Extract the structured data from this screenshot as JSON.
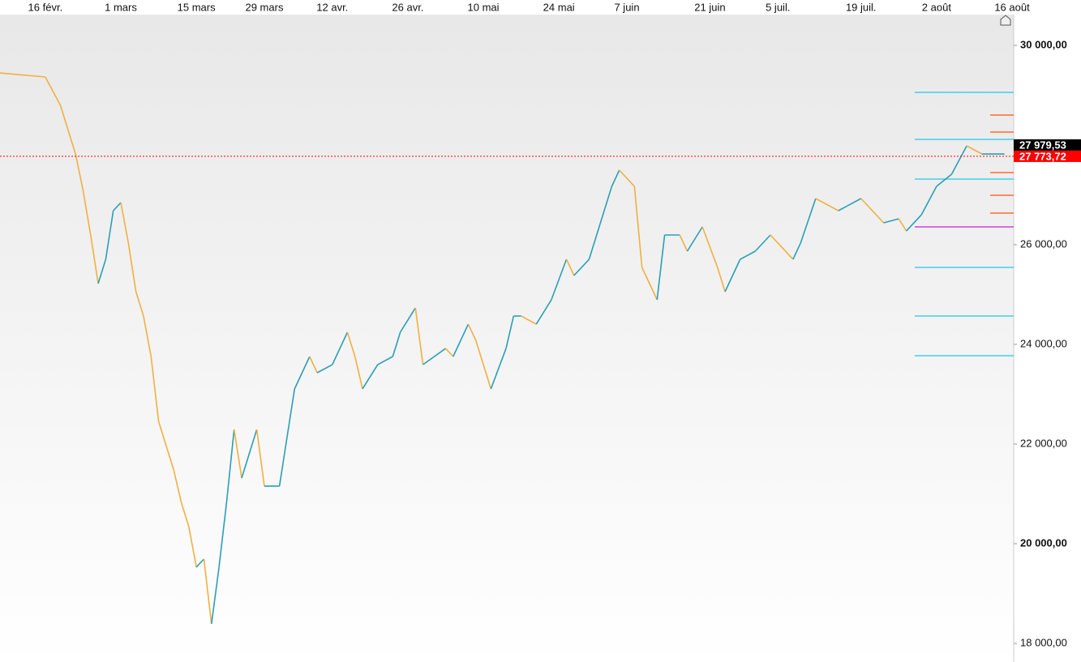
{
  "chart_data": {
    "type": "price",
    "x": [
      0,
      6,
      8,
      10,
      11,
      12,
      13,
      14,
      15,
      16,
      17,
      18,
      19,
      20,
      21,
      23,
      24,
      25,
      26,
      27,
      28,
      29,
      30,
      31,
      32,
      34,
      35,
      37,
      39,
      41,
      42,
      44,
      46,
      47,
      48,
      50,
      52,
      53,
      55,
      56,
      59,
      60,
      62,
      63,
      65,
      67,
      68,
      69,
      71,
      73,
      75,
      76,
      78,
      79,
      81,
      82,
      84,
      85,
      87,
      88,
      90,
      91,
      93,
      95,
      96,
      98,
      100,
      102,
      103,
      105,
      106,
      108,
      111,
      112,
      114,
      117,
      119,
      120,
      122,
      124,
      126,
      128,
      130,
      133
    ],
    "values": [
      29447,
      29366,
      28797,
      27821,
      27090,
      26195,
      25220,
      25707,
      26683,
      26845,
      26033,
      25057,
      24569,
      23756,
      22455,
      21480,
      20830,
      20342,
      19529,
      19691,
      18390,
      19529,
      20830,
      22293,
      21317,
      22293,
      21155,
      21155,
      23106,
      23756,
      23431,
      23593,
      24244,
      23756,
      23106,
      23593,
      23756,
      24244,
      24732,
      23593,
      23918,
      23756,
      24406,
      24081,
      23106,
      23918,
      24569,
      24569,
      24406,
      24894,
      25707,
      25382,
      25707,
      26195,
      27171,
      27496,
      27171,
      25545,
      24894,
      26195,
      26195,
      25870,
      26358,
      25545,
      25057,
      25707,
      25870,
      26195,
      26033,
      25707,
      26033,
      26927,
      26683,
      26764,
      26927,
      26439,
      26520,
      26276,
      26601,
      27171,
      27415,
      27984,
      27821,
      27821
    ],
    "up_color": "#2a9fb5",
    "down_color": "#f0b040",
    "xlim": [
      0,
      134
    ],
    "xticks": [
      {
        "value": 6,
        "label": "16 févr."
      },
      {
        "value": 16,
        "label": "1 mars"
      },
      {
        "value": 26,
        "label": "15 mars"
      },
      {
        "value": 35,
        "label": "29 mars"
      },
      {
        "value": 44,
        "label": "12 avr."
      },
      {
        "value": 54,
        "label": "26 avr."
      },
      {
        "value": 64,
        "label": "10 mai"
      },
      {
        "value": 74,
        "label": "24 mai"
      },
      {
        "value": 83,
        "label": "7 juin"
      },
      {
        "value": 94,
        "label": "21 juin"
      },
      {
        "value": 103,
        "label": "5 juil."
      },
      {
        "value": 114,
        "label": "19 juil."
      },
      {
        "value": 124,
        "label": "2 août"
      },
      {
        "value": 134,
        "label": "16 août"
      }
    ],
    "ylim": [
      17626,
      30618
    ],
    "yticks": [
      {
        "value": 30000,
        "label": "30 000,00"
      },
      {
        "value": 26000,
        "label": "26 000,00"
      },
      {
        "value": 24000,
        "label": "24 000,00"
      },
      {
        "value": 22000,
        "label": "22 000,00"
      },
      {
        "value": 20000,
        "label": "20 000,00"
      },
      {
        "value": 18000,
        "label": "18 000,00"
      }
    ],
    "last": {
      "value": 27979.53,
      "label": "27 979,53",
      "color": "#000000"
    },
    "reference": {
      "value": 27773.72,
      "label": "27 773,72",
      "color": "#ff0000"
    },
    "levels": [
      {
        "color": "#40d0e8",
        "values": [
          29057,
          28114,
          27317,
          25545,
          24569,
          23772
        ]
      },
      {
        "color": "#ff6a30",
        "values": [
          28602,
          28260,
          27447,
          26992,
          26634
        ]
      },
      {
        "color": "#d040e0",
        "values": [
          26358
        ]
      }
    ]
  }
}
